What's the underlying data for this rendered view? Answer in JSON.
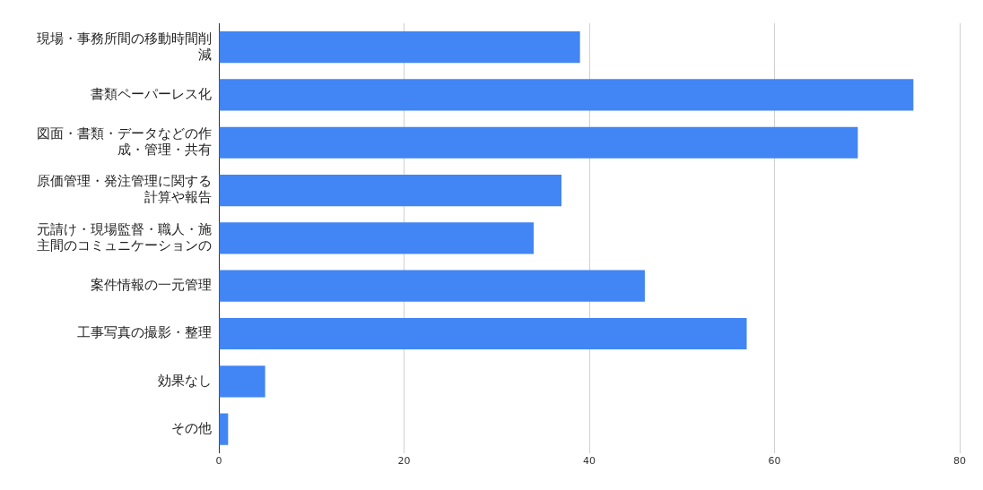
{
  "chart_data": {
    "type": "bar",
    "orientation": "horizontal",
    "categories": [
      "現場・事務所間の移動時間削減",
      "書類ペーパーレス化",
      "図面・書類・データなどの作成・管理・共有",
      "原価管理・発注管理に関する計算や報告",
      "元請け・現場監督・職人・施主間のコミュニケーションの",
      "案件情報の一元管理",
      "工事写真の撮影・整理",
      "効果なし",
      "その他"
    ],
    "values": [
      39,
      75,
      69,
      37,
      34,
      46,
      57,
      5,
      1
    ],
    "color": "#4285f4",
    "xlim": [
      0,
      80
    ],
    "xticks": [
      0,
      20,
      40,
      60,
      80
    ],
    "grid": "x",
    "legend": false
  }
}
